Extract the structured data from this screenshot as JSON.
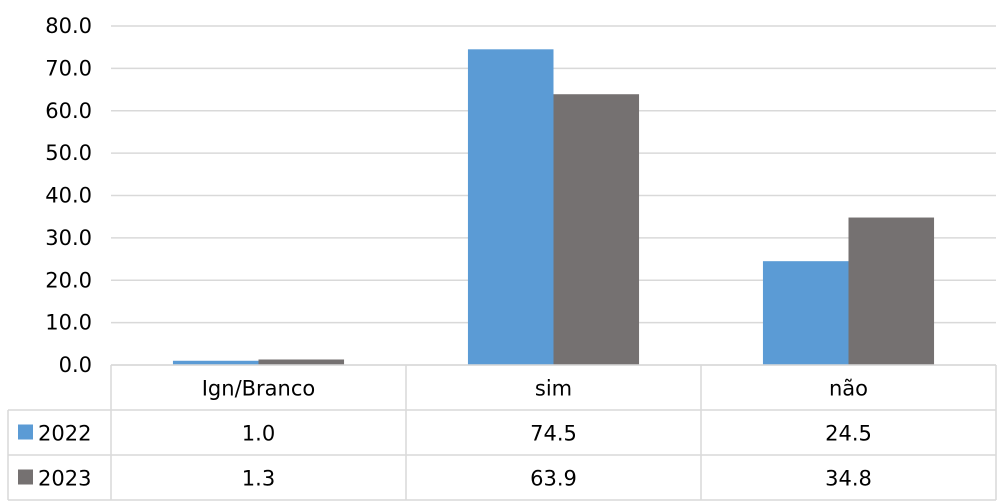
{
  "chart_data": {
    "type": "bar",
    "categories": [
      "Ign/Branco",
      "sim",
      "não"
    ],
    "series": [
      {
        "name": "2022",
        "values": [
          1.0,
          74.5,
          24.5
        ],
        "color": "#5b9bd5"
      },
      {
        "name": "2023",
        "values": [
          1.3,
          63.9,
          34.8
        ],
        "color": "#757171"
      }
    ],
    "y_ticks": [
      "0.0",
      "10.0",
      "20.0",
      "30.0",
      "40.0",
      "50.0",
      "60.0",
      "70.0",
      "80.0"
    ],
    "ylim": [
      0,
      80
    ],
    "grid": true,
    "legend": "data-table",
    "data_table": {
      "rows": [
        {
          "series": "2022",
          "cells": [
            "1.0",
            "74.5",
            "24.5"
          ]
        },
        {
          "series": "2023",
          "cells": [
            "1.3",
            "63.9",
            "34.8"
          ]
        }
      ]
    }
  }
}
